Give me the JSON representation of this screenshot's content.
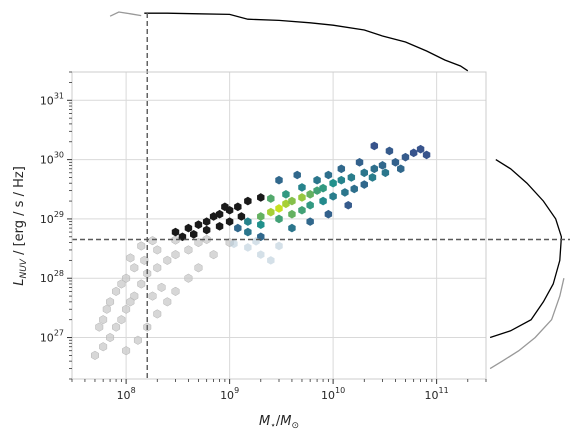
{
  "chart_data": {
    "type": "hexbin-scatter-with-marginal-kde",
    "xlabel": "M_⋆/M_⊙",
    "ylabel": "L_NUV / [erg / s / Hz]",
    "xscale": "log",
    "yscale": "log",
    "xlim": [
      30000000.0,
      300000000000.0
    ],
    "ylim": [
      2e+26,
      3e+31
    ],
    "grid": true,
    "x_ticks": [
      {
        "value": 100000000.0,
        "base": "10",
        "exp": "8"
      },
      {
        "value": 1000000000.0,
        "base": "10",
        "exp": "9"
      },
      {
        "value": 10000000000.0,
        "base": "10",
        "exp": "10"
      },
      {
        "value": 100000000000.0,
        "base": "10",
        "exp": "11"
      }
    ],
    "y_ticks": [
      {
        "value": 1e+27,
        "base": "10",
        "exp": "27"
      },
      {
        "value": 1e+28,
        "base": "10",
        "exp": "28"
      },
      {
        "value": 1e+29,
        "base": "10",
        "exp": "29"
      },
      {
        "value": 1e+30,
        "base": "10",
        "exp": "30"
      },
      {
        "value": 1e+31,
        "base": "10",
        "exp": "31"
      }
    ],
    "threshold_lines": {
      "x": 160000000.0,
      "y": 4.5e+28
    },
    "colors": {
      "grey_hex": "#c9c9c9",
      "grey_hex_edge": "#b3b3b3",
      "dark_hex": "#1a1a1a",
      "viridis_low": "#3b4d8c",
      "viridis_mid": "#21918c",
      "viridis_high": "#c8e020",
      "grid": "#d9d9d9",
      "threshold_line": "#595959",
      "kde_all": "#999999",
      "kde_selected": "#000000"
    },
    "series": [
      {
        "name": "",
        "style": "grey",
        "points": [
          [
            50000000.0,
            5e+26
          ],
          [
            60000000.0,
            7e+26
          ],
          [
            70000000.0,
            1e+27
          ],
          [
            80000000.0,
            1.5e+27
          ],
          [
            90000000.0,
            2e+27
          ],
          [
            100000000.0,
            3e+27
          ],
          [
            120000000.0,
            5e+27
          ],
          [
            140000000.0,
            8e+27
          ],
          [
            160000000.0,
            1.2e+28
          ],
          [
            200000000.0,
            1.5e+28
          ],
          [
            250000000.0,
            2e+28
          ],
          [
            300000000.0,
            2.5e+28
          ],
          [
            400000000.0,
            3e+28
          ],
          [
            500000000.0,
            4e+28
          ],
          [
            600000000.0,
            4.5e+28
          ],
          [
            80000000.0,
            6e+27
          ],
          [
            100000000.0,
            1e+28
          ],
          [
            120000000.0,
            1.5e+28
          ],
          [
            150000000.0,
            2e+28
          ],
          [
            200000000.0,
            3e+28
          ],
          [
            100000000.0,
            6e+26
          ],
          [
            130000000.0,
            9e+26
          ],
          [
            160000000.0,
            1.5e+27
          ],
          [
            200000000.0,
            2.5e+27
          ],
          [
            250000000.0,
            4e+27
          ],
          [
            300000000.0,
            6e+27
          ],
          [
            400000000.0,
            1e+28
          ],
          [
            500000000.0,
            1.5e+28
          ],
          [
            700000000.0,
            2.5e+28
          ],
          [
            1000000000.0,
            4e+28
          ],
          [
            60000000.0,
            2e+27
          ],
          [
            70000000.0,
            4e+27
          ],
          [
            90000000.0,
            8e+27
          ],
          [
            110000000.0,
            2.2e+28
          ],
          [
            140000000.0,
            3.5e+28
          ],
          [
            180000000.0,
            4.3e+28
          ],
          [
            300000000.0,
            4.4e+28
          ],
          [
            220000000.0,
            7e+27
          ],
          [
            180000000.0,
            5e+27
          ],
          [
            110000000.0,
            4e+27
          ],
          [
            65000000.0,
            3e+27
          ],
          [
            55000000.0,
            1.5e+27
          ]
        ]
      },
      {
        "name": "",
        "style": "dark",
        "points": [
          [
            300000000.0,
            6e+28
          ],
          [
            400000000.0,
            7e+28
          ],
          [
            500000000.0,
            8e+28
          ],
          [
            600000000.0,
            9e+28
          ],
          [
            700000000.0,
            1.1e+29
          ],
          [
            800000000.0,
            1.2e+29
          ],
          [
            1000000000.0,
            1.4e+29
          ],
          [
            1200000000.0,
            1.6e+29
          ],
          [
            350000000.0,
            5e+28
          ],
          [
            450000000.0,
            5.5e+28
          ],
          [
            600000000.0,
            6.5e+28
          ],
          [
            800000000.0,
            7.5e+28
          ],
          [
            1000000000.0,
            9e+28
          ],
          [
            1300000000.0,
            1.1e+29
          ],
          [
            900000000.0,
            1.6e+29
          ],
          [
            1500000000.0,
            2e+29
          ],
          [
            2000000000.0,
            2.3e+29
          ]
        ]
      },
      {
        "name": "",
        "style": "viridis",
        "points": [
          [
            1200000000.0,
            7e+28,
            0.2
          ],
          [
            1500000000.0,
            9e+28,
            0.4
          ],
          [
            2000000000.0,
            1.1e+29,
            0.7
          ],
          [
            2500000000.0,
            1.3e+29,
            0.9
          ],
          [
            3000000000.0,
            1.5e+29,
            1.0
          ],
          [
            3500000000.0,
            1.8e+29,
            0.9
          ],
          [
            4000000000.0,
            2e+29,
            0.8
          ],
          [
            5000000000.0,
            2.3e+29,
            0.85
          ],
          [
            6000000000.0,
            2.6e+29,
            0.7
          ],
          [
            7000000000.0,
            3e+29,
            0.6
          ],
          [
            8000000000.0,
            3.3e+29,
            0.55
          ],
          [
            10000000000.0,
            4e+29,
            0.5
          ],
          [
            12000000000.0,
            4.5e+29,
            0.4
          ],
          [
            15000000000.0,
            5e+29,
            0.35
          ],
          [
            20000000000.0,
            6e+29,
            0.3
          ],
          [
            25000000000.0,
            7e+29,
            0.25
          ],
          [
            30000000000.0,
            8e+29,
            0.2
          ],
          [
            40000000000.0,
            9e+29,
            0.15
          ],
          [
            50000000000.0,
            1.1e+30,
            0.1
          ],
          [
            60000000000.0,
            1.3e+30,
            0.05
          ],
          [
            2000000000.0,
            8e+28,
            0.5
          ],
          [
            3000000000.0,
            1e+29,
            0.6
          ],
          [
            4000000000.0,
            1.2e+29,
            0.7
          ],
          [
            5000000000.0,
            1.4e+29,
            0.6
          ],
          [
            6000000000.0,
            1.7e+29,
            0.55
          ],
          [
            8000000000.0,
            2e+29,
            0.45
          ],
          [
            10000000000.0,
            2.4e+29,
            0.35
          ],
          [
            13000000000.0,
            2.8e+29,
            0.3
          ],
          [
            16000000000.0,
            3.2e+29,
            0.25
          ],
          [
            20000000000.0,
            3.8e+29,
            0.2
          ],
          [
            2500000000.0,
            2.2e+29,
            0.65
          ],
          [
            3500000000.0,
            2.6e+29,
            0.55
          ],
          [
            5000000000.0,
            3.4e+29,
            0.4
          ],
          [
            7000000000.0,
            4.5e+29,
            0.3
          ],
          [
            9000000000.0,
            5.5e+29,
            0.25
          ],
          [
            12000000000.0,
            7e+29,
            0.2
          ],
          [
            18000000000.0,
            9e+29,
            0.15
          ],
          [
            35000000000.0,
            1.4e+30,
            0.1
          ],
          [
            70000000000.0,
            1.5e+30,
            0.05
          ],
          [
            80000000000.0,
            1.2e+30,
            0.05
          ],
          [
            25000000000.0,
            1.7e+30,
            0.05
          ],
          [
            1500000000.0,
            6e+28,
            0.3
          ],
          [
            2000000000.0,
            5e+28,
            0.2
          ],
          [
            4000000000.0,
            7e+28,
            0.3
          ],
          [
            6000000000.0,
            9e+28,
            0.2
          ],
          [
            9000000000.0,
            1.2e+29,
            0.15
          ],
          [
            14000000000.0,
            1.7e+29,
            0.1
          ],
          [
            24000000000.0,
            5e+29,
            0.35
          ],
          [
            32000000000.0,
            6e+29,
            0.3
          ],
          [
            45000000000.0,
            7e+29,
            0.2
          ],
          [
            3000000000.0,
            4.5e+29,
            0.2
          ],
          [
            4500000000.0,
            5.5e+29,
            0.2
          ]
        ]
      },
      {
        "name": "",
        "style": "pale",
        "points": [
          [
            1100000000.0,
            3.8e+28
          ],
          [
            1500000000.0,
            3.3e+28
          ],
          [
            2000000000.0,
            2.5e+28
          ],
          [
            2500000000.0,
            2e+28
          ],
          [
            1800000000.0,
            4.2e+28
          ],
          [
            3000000000.0,
            3.5e+28
          ]
        ]
      }
    ],
    "marginal_x": {
      "all": [
        [
          70000000.0,
          0.93
        ],
        [
          85000000.0,
          1.0
        ],
        [
          110000000.0,
          0.97
        ],
        [
          140000000.0,
          0.94
        ]
      ],
      "selected": [
        [
          150000000.0,
          0.98
        ],
        [
          250000000.0,
          0.98
        ],
        [
          500000000.0,
          0.97
        ],
        [
          1000000000.0,
          0.96
        ],
        [
          1500000000.0,
          0.88
        ],
        [
          3000000000.0,
          0.86
        ],
        [
          6000000000.0,
          0.82
        ],
        [
          10000000000.0,
          0.78
        ],
        [
          20000000000.0,
          0.7
        ],
        [
          30000000000.0,
          0.6
        ],
        [
          50000000000.0,
          0.5
        ],
        [
          80000000000.0,
          0.35
        ],
        [
          120000000000.0,
          0.2
        ],
        [
          170000000000.0,
          0.1
        ],
        [
          200000000000.0,
          0.02
        ]
      ]
    },
    "marginal_y": {
      "all": [
        [
          1e+28,
          0.95
        ],
        [
          5e+27,
          0.9
        ],
        [
          2e+27,
          0.8
        ],
        [
          1e+27,
          0.6
        ],
        [
          6e+26,
          0.4
        ],
        [
          4e+26,
          0.2
        ],
        [
          3e+26,
          0.05
        ]
      ],
      "selected": [
        [
          1e+30,
          0.12
        ],
        [
          7e+29,
          0.3
        ],
        [
          4e+29,
          0.5
        ],
        [
          2e+29,
          0.7
        ],
        [
          1e+29,
          0.85
        ],
        [
          5e+28,
          0.92
        ],
        [
          2e+28,
          0.9
        ],
        [
          8e+27,
          0.82
        ],
        [
          4e+27,
          0.7
        ],
        [
          2e+27,
          0.55
        ],
        [
          1.3e+27,
          0.3
        ],
        [
          1e+27,
          0.05
        ]
      ]
    }
  }
}
